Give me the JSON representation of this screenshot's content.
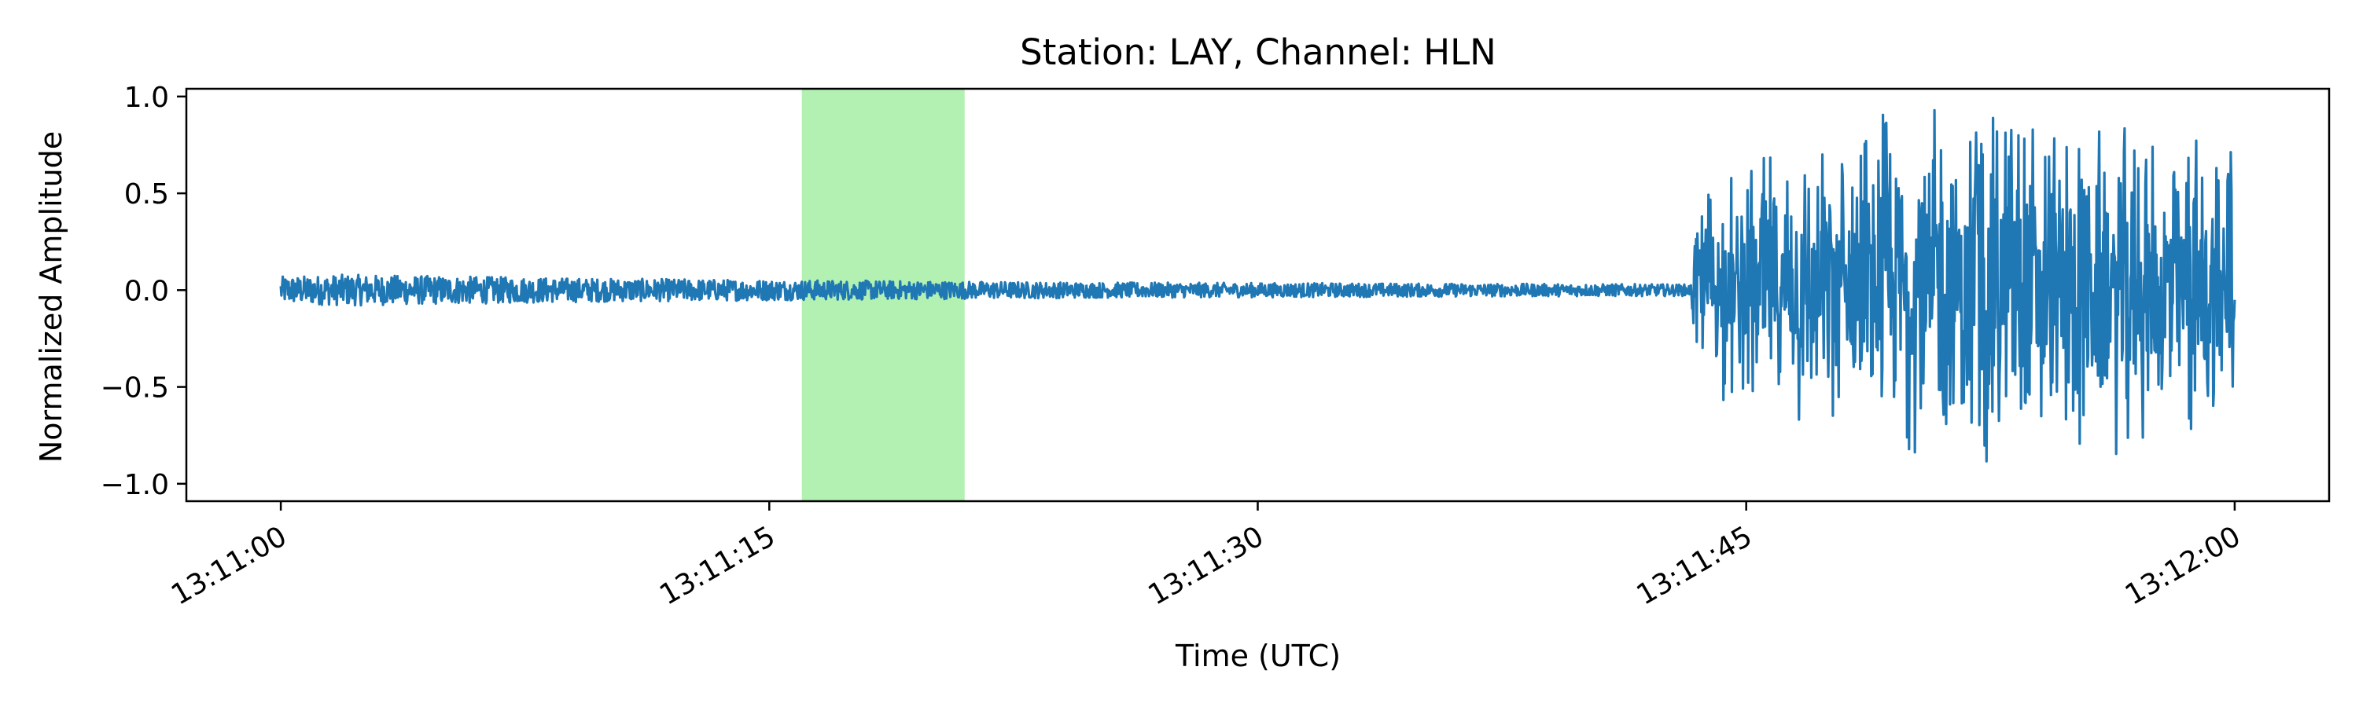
{
  "chart_data": {
    "type": "line",
    "title": "Station: LAY, Channel: HLN",
    "xlabel": "Time (UTC)",
    "ylabel": "Normalized Amplitude",
    "x_tick_labels": [
      "13:11:00",
      "13:11:15",
      "13:11:30",
      "13:11:45",
      "13:12:00"
    ],
    "x_tick_seconds": [
      0,
      15,
      30,
      45,
      60
    ],
    "y_tick_labels": [
      "1.0",
      "0.5",
      "0.0",
      "−0.5",
      "−1.0"
    ],
    "y_tick_values": [
      1.0,
      0.5,
      0.0,
      -0.5,
      -1.0
    ],
    "xlim_seconds": [
      -2.9,
      62.9
    ],
    "ylim": [
      -1.09,
      1.04
    ],
    "grid": false,
    "series": [
      {
        "color": "#1f77b4",
        "x_start_seconds": 0,
        "x_end_seconds": 60,
        "envelope": [
          {
            "t": 0,
            "amp": 0.07
          },
          {
            "t": 2,
            "amp": 0.08
          },
          {
            "t": 10,
            "amp": 0.06
          },
          {
            "t": 25,
            "amp": 0.04
          },
          {
            "t": 43.3,
            "amp": 0.03
          },
          {
            "t": 43.5,
            "amp": 0.5
          },
          {
            "t": 47,
            "amp": 0.85
          },
          {
            "t": 50,
            "amp": 0.95
          },
          {
            "t": 60,
            "amp": 0.8
          }
        ]
      }
    ],
    "highlight_span": {
      "x_start_seconds": 16,
      "x_end_seconds": 21,
      "color": "#b3f1b3"
    }
  }
}
